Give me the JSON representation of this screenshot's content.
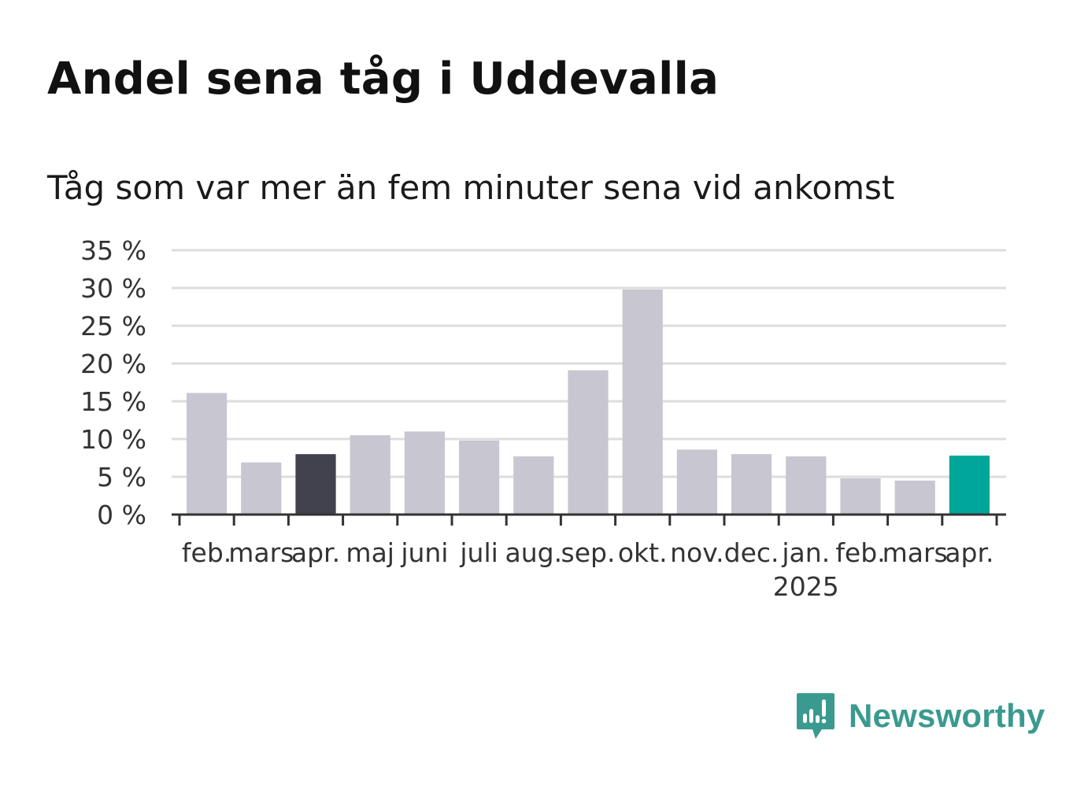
{
  "header": {
    "title": "Andel sena tåg i Uddevalla",
    "subtitle": "Tåg som var mer än fem minuter sena vid ankomst"
  },
  "brand": {
    "name": "Newsworthy",
    "icon": "newsworthy-bar-chart-icon",
    "color": "#3a9a8f"
  },
  "colors": {
    "default_bar": "#c8c6d0",
    "highlight_last_year": "#42424e",
    "highlight_current": "#00a699",
    "grid": "#dddddd",
    "axis": "#333333"
  },
  "chart_data": {
    "type": "bar",
    "title": "Andel sena tåg i Uddevalla",
    "subtitle": "Tåg som var mer än fem minuter sena vid ankomst",
    "xlabel": "",
    "ylabel": "",
    "unit": "%",
    "ylim": [
      0,
      35
    ],
    "yticks": [
      0,
      5,
      10,
      15,
      20,
      25,
      30,
      35
    ],
    "ytick_labels": [
      "0 %",
      "5 %",
      "10 %",
      "15 %",
      "20 %",
      "25 %",
      "30 %",
      "35 %"
    ],
    "grid": true,
    "legend": "none",
    "categories": [
      "feb.",
      "mars",
      "apr.",
      "maj",
      "juni",
      "juli",
      "aug.",
      "sep.",
      "okt.",
      "nov.",
      "dec.",
      "jan.",
      "feb.",
      "mars",
      "apr."
    ],
    "year_label": {
      "text": "2025",
      "under_category_index": 11
    },
    "values": [
      16.1,
      6.9,
      8.0,
      10.5,
      11.0,
      9.8,
      7.7,
      19.1,
      29.8,
      8.6,
      8.0,
      7.7,
      4.8,
      4.5,
      7.8
    ],
    "bar_color_roles": [
      "default",
      "default",
      "highlight_last_year",
      "default",
      "default",
      "default",
      "default",
      "default",
      "default",
      "default",
      "default",
      "default",
      "default",
      "default",
      "highlight_current"
    ]
  }
}
